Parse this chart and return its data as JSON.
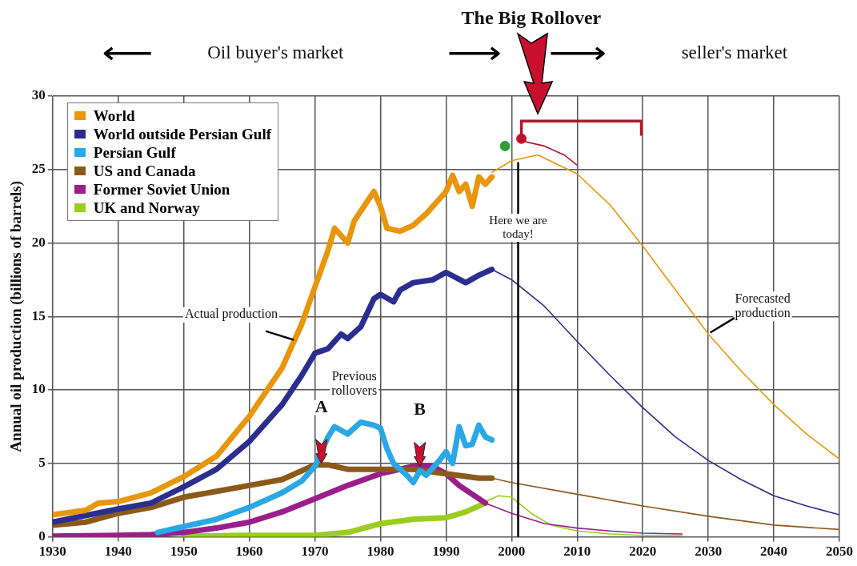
{
  "chart_data": {
    "type": "line",
    "title": "The Big Rollover",
    "ylabel": "Annual oil production (billions of barrels)",
    "xlim": [
      1930,
      2050
    ],
    "xticks": [
      1930,
      1940,
      1950,
      1960,
      1970,
      1980,
      1990,
      2000,
      2010,
      2020,
      2030,
      2040,
      2050
    ],
    "ylim": [
      0,
      30
    ],
    "yticks": [
      0,
      5,
      10,
      15,
      20,
      25,
      30
    ],
    "grid": true,
    "legend": "top left",
    "marker": "none",
    "series": [
      {
        "name": "World",
        "color": "#e8960c",
        "x": [
          1930,
          1935,
          1937,
          1940,
          1945,
          1950,
          1955,
          1960,
          1965,
          1968,
          1970,
          1972,
          1973,
          1975,
          1976,
          1979,
          1980,
          1981,
          1983,
          1985,
          1987,
          1989,
          1990,
          1991,
          1992,
          1993,
          1994,
          1995,
          1996,
          1997
        ],
        "values": [
          1.5,
          1.8,
          2.3,
          2.4,
          3.0,
          4.1,
          5.5,
          8.2,
          11.5,
          14.5,
          17,
          19.5,
          21,
          20,
          21.5,
          23.5,
          22.5,
          21,
          20.8,
          21.2,
          22,
          23,
          23.5,
          24.6,
          23.5,
          24,
          22.5,
          24.5,
          24,
          24.5
        ]
      },
      {
        "name": "World outside Persian Gulf",
        "color": "#2b2e8f",
        "x": [
          1930,
          1940,
          1945,
          1950,
          1955,
          1960,
          1965,
          1968,
          1970,
          1972,
          1974,
          1975,
          1977,
          1979,
          1980,
          1982,
          1983,
          1985,
          1988,
          1990,
          1993,
          1995,
          1997
        ],
        "values": [
          1.0,
          1.9,
          2.3,
          3.4,
          4.6,
          6.5,
          9,
          11,
          12.5,
          12.8,
          13.8,
          13.5,
          14.3,
          16.2,
          16.5,
          16.0,
          16.8,
          17.3,
          17.5,
          18,
          17.3,
          17.8,
          18.2
        ]
      },
      {
        "name": "Persian Gulf",
        "color": "#2aa8e6",
        "x": [
          1946,
          1950,
          1955,
          1960,
          1965,
          1968,
          1970,
          1972,
          1973,
          1975,
          1977,
          1979,
          1980,
          1981,
          1982,
          1984,
          1985,
          1986,
          1987,
          1989,
          1990,
          1991,
          1992,
          1993,
          1994,
          1995,
          1996,
          1997
        ],
        "values": [
          0.3,
          0.7,
          1.2,
          2,
          3,
          3.8,
          4.8,
          6.8,
          7.5,
          7,
          7.8,
          7.6,
          7.4,
          6,
          5,
          4.2,
          3.7,
          4.5,
          4.2,
          5.2,
          5.8,
          5.0,
          7.5,
          6.2,
          6.3,
          7.6,
          6.8,
          6.6
        ]
      },
      {
        "name": "US and Canada",
        "color": "#8b5a1a",
        "x": [
          1930,
          1935,
          1940,
          1945,
          1950,
          1955,
          1960,
          1965,
          1968,
          1970,
          1972,
          1975,
          1980,
          1985,
          1990,
          1995,
          1997
        ],
        "values": [
          0.8,
          1.0,
          1.6,
          2.0,
          2.7,
          3.1,
          3.5,
          3.9,
          4.5,
          4.9,
          4.9,
          4.6,
          4.6,
          4.6,
          4.3,
          4.0,
          4.0
        ]
      },
      {
        "name": "Former Soviet Union",
        "color": "#9b1f8a",
        "x": [
          1930,
          1940,
          1945,
          1950,
          1955,
          1960,
          1965,
          1970,
          1975,
          1980,
          1985,
          1988,
          1990,
          1992,
          1994,
          1996
        ],
        "values": [
          0.05,
          0.1,
          0.15,
          0.3,
          0.6,
          1.0,
          1.7,
          2.6,
          3.5,
          4.3,
          4.8,
          4.8,
          4.3,
          3.5,
          2.9,
          2.3
        ]
      },
      {
        "name": "UK and Norway",
        "color": "#9acd1f",
        "x": [
          1950,
          1960,
          1970,
          1975,
          1980,
          1985,
          1990,
          1993,
          1996
        ],
        "values": [
          0.05,
          0.1,
          0.1,
          0.3,
          0.9,
          1.2,
          1.3,
          1.7,
          2.3
        ]
      },
      {
        "color": "#e8960c",
        "x": [
          1997,
          2000,
          2004,
          2010,
          2015,
          2020,
          2025,
          2030,
          2035,
          2040,
          2045,
          2050
        ],
        "values": [
          24.8,
          25.6,
          26,
          24.7,
          22.6,
          19.8,
          16.8,
          13.8,
          11.3,
          9,
          7,
          5.3
        ]
      },
      {
        "color": "#2b2e8f",
        "x": [
          1997,
          2000,
          2005,
          2010,
          2015,
          2020,
          2025,
          2030,
          2035,
          2040,
          2045,
          2050
        ],
        "values": [
          18.2,
          17.5,
          15.7,
          13.3,
          11,
          8.8,
          6.8,
          5.2,
          3.9,
          2.8,
          2.1,
          1.5
        ]
      },
      {
        "color": "#8b5a1a",
        "x": [
          1997,
          2000,
          2010,
          2020,
          2030,
          2040,
          2050
        ],
        "values": [
          4.0,
          3.7,
          2.9,
          2.1,
          1.4,
          0.8,
          0.5
        ]
      },
      {
        "color": "#9b1f8a",
        "x": [
          1996,
          2000,
          2005,
          2010,
          2015,
          2020,
          2026
        ],
        "values": [
          2.3,
          1.6,
          0.9,
          0.6,
          0.4,
          0.25,
          0.2
        ]
      },
      {
        "color": "#9acd1f",
        "x": [
          1996,
          1998,
          2000,
          2003,
          2006,
          2010,
          2015,
          2020,
          2026
        ],
        "values": [
          2.4,
          2.8,
          2.7,
          1.6,
          0.8,
          0.4,
          0.2,
          0.1,
          0.1
        ]
      },
      {
        "color": "#b0182c",
        "x": [
          2002,
          2005,
          2008,
          2010
        ],
        "values": [
          26.9,
          26.6,
          26.0,
          25.3
        ]
      },
      {
        "type": "scatter",
        "marker": "circle",
        "color": "#2e9e3a",
        "x": [
          1999
        ],
        "values": [
          26.6
        ]
      },
      {
        "type": "scatter",
        "marker": "circle",
        "color": "#c8102e",
        "x": [
          2001.5
        ],
        "values": [
          27.1
        ]
      }
    ],
    "ref_lines": [
      {
        "axis": "x",
        "value": 2001,
        "label": "Here we are today!",
        "color": "#000000"
      }
    ],
    "annotations": [
      "Oil buyer's market",
      "seller's market",
      "Previous rollovers",
      {
        "text": "A",
        "x": 1971,
        "y": 5
      },
      {
        "text": "B",
        "x": 1986,
        "y": 4.8
      },
      {
        "text": "Actual production",
        "x": 1967,
        "y": 13.5
      },
      {
        "text": "Forecasted production",
        "x": 2030,
        "y": 13.8
      }
    ]
  }
}
